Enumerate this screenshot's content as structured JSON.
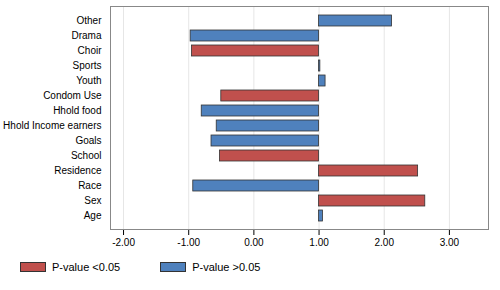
{
  "chart_data": {
    "type": "bar",
    "orientation": "horizontal",
    "categories": [
      "Other",
      "Drama",
      "Choir",
      "Sports",
      "Youth",
      "Condom Use",
      "Hhold food",
      "Hhold Income earners",
      "Goals",
      "School",
      "Residence",
      "Race",
      "Sex",
      "Age"
    ],
    "base": 1,
    "series": [
      {
        "name": "P-value <0.05",
        "color": "#C0504D",
        "values": [
          null,
          null,
          -0.95,
          null,
          null,
          -0.5,
          null,
          null,
          null,
          -0.52,
          2.52,
          null,
          2.63,
          null
        ]
      },
      {
        "name": "P-value >0.05",
        "color": "#4F81BD",
        "values": [
          2.12,
          -0.97,
          null,
          1.02,
          1.1,
          null,
          -0.8,
          -0.57,
          -0.65,
          null,
          null,
          -0.93,
          null,
          1.06
        ]
      }
    ],
    "xlim": [
      -2.2,
      3.6
    ],
    "xticks": [
      {
        "value": -2,
        "label": "-2.00"
      },
      {
        "value": -1,
        "label": "-1.00"
      },
      {
        "value": 0,
        "label": "0.00"
      },
      {
        "value": 1,
        "label": "1.00"
      },
      {
        "value": 2,
        "label": "2.00"
      },
      {
        "value": 3,
        "label": "3.00"
      }
    ],
    "grid": true,
    "legend": "bottom"
  }
}
